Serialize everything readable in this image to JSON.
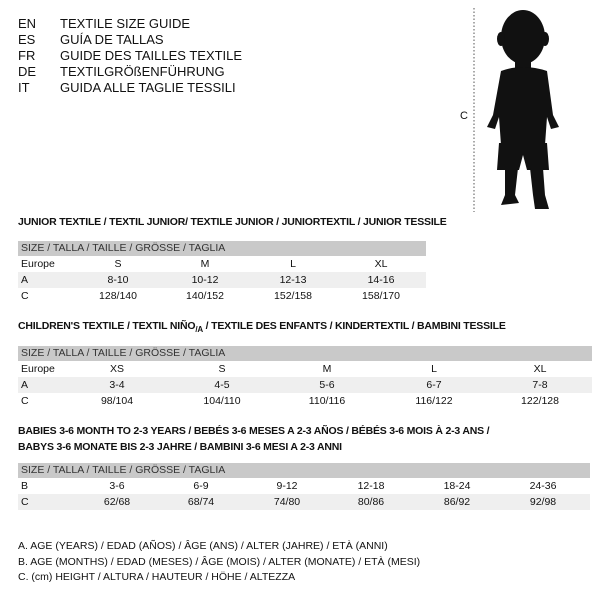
{
  "languages": [
    {
      "code": "EN",
      "name": "TEXTILE SIZE GUIDE"
    },
    {
      "code": "ES",
      "name": "GUÍA DE TALLAS"
    },
    {
      "code": "FR",
      "name": "GUIDE DES TAILLES TEXTILE"
    },
    {
      "code": "DE",
      "name": "TEXTILGRÖßENFÜHRUNG"
    },
    {
      "code": "IT",
      "name": "GUIDA ALLE TAGLIE TESSILI"
    }
  ],
  "figure": {
    "label": "C",
    "icon": "child-silhouette"
  },
  "junior": {
    "title": "JUNIOR TEXTILE / TEXTIL JUNIOR/ TEXTILE JUNIOR / JUNIORTEXTIL / JUNIOR TESSILE",
    "header": "SIZE / TALLA / TAILLE / GRÖSSE / TAGLIA",
    "rows": [
      {
        "label": "Europe",
        "values": [
          "S",
          "M",
          "L",
          "XL"
        ]
      },
      {
        "label": "A",
        "values": [
          "8-10",
          "10-12",
          "12-13",
          "14-16"
        ]
      },
      {
        "label": "C",
        "values": [
          "128/140",
          "140/152",
          "152/158",
          "158/170"
        ]
      }
    ]
  },
  "children": {
    "title_pre": "CHILDREN'S TEXTILE / TEXTIL NIÑO",
    "title_sub": "/A",
    "title_post": " / TEXTILE DES ENFANTS / KINDERTEXTIL / BAMBINI TESSILE",
    "header": "SIZE / TALLA / TAILLE / GRÖSSE / TAGLIA",
    "rows": [
      {
        "label": "Europe",
        "values": [
          "XS",
          "S",
          "M",
          "L",
          "XL"
        ]
      },
      {
        "label": "A",
        "values": [
          "3-4",
          "4-5",
          "5-6",
          "6-7",
          "7-8"
        ]
      },
      {
        "label": "C",
        "values": [
          "98/104",
          "104/110",
          "110/116",
          "116/122",
          "122/128"
        ]
      }
    ]
  },
  "babies": {
    "title_line1": "BABIES 3-6 MONTH TO 2-3 YEARS / BEBÉS 3-6 MESES A 2-3 AÑOS / BÉBÉS 3-6 MOIS À 2-3 ANS /",
    "title_line2": "BABYS 3-6 MONATE BIS 2-3 JAHRE / BAMBINI 3-6 MESI A 2-3 ANNI",
    "header": "SIZE / TALLA / TAILLE / GRÖSSE / TAGLIA",
    "rows": [
      {
        "label": "B",
        "values": [
          "3-6",
          "6-9",
          "9-12",
          "12-18",
          "18-24",
          "24-36"
        ]
      },
      {
        "label": "C",
        "values": [
          "62/68",
          "68/74",
          "74/80",
          "80/86",
          "86/92",
          "92/98"
        ]
      }
    ]
  },
  "legend": [
    "A. AGE (YEARS) / EDAD (AÑOS) / ÂGE (ANS) / ALTER (JAHRE) / ETÀ (ANNI)",
    "B. AGE (MONTHS) / EDAD (MESES) / ÂGE (MOIS) / ALTER (MONATE) / ETÀ (MESI)",
    "C. (cm) HEIGHT / ALTURA / HAUTEUR / HÖHE / ALTEZZA"
  ],
  "colors": {
    "header_band": "#c9c9c9",
    "row_shade": "#efefef",
    "text": "#111111"
  }
}
